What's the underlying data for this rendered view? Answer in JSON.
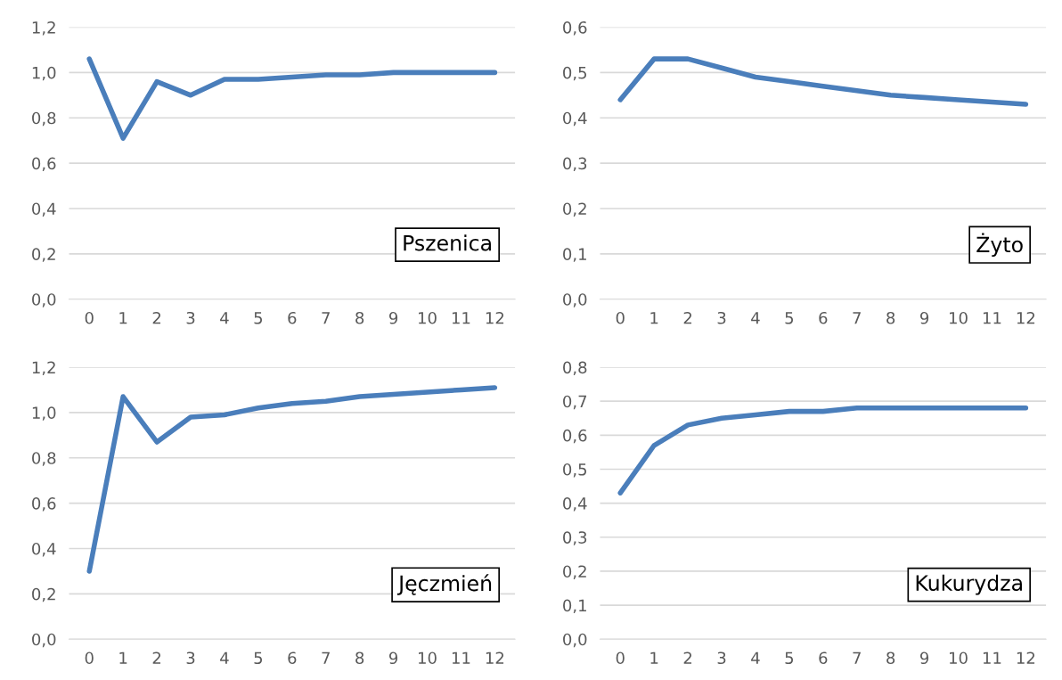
{
  "chart_data": [
    {
      "type": "line",
      "categories": [
        "0",
        "1",
        "2",
        "3",
        "4",
        "5",
        "6",
        "7",
        "8",
        "9",
        "10",
        "11",
        "12"
      ],
      "series": [
        {
          "color": "#4a7ebb",
          "values": [
            1.06,
            0.71,
            0.96,
            0.9,
            0.97,
            0.97,
            0.98,
            0.99,
            0.99,
            1.0,
            1.0,
            1.0,
            1.0
          ]
        }
      ],
      "ylim": [
        0,
        1.2
      ],
      "yticks": [
        {
          "value": 0,
          "label": "0,0"
        },
        {
          "value": 0.2,
          "label": "0,2"
        },
        {
          "value": 0.4,
          "label": "0,4"
        },
        {
          "value": 0.6,
          "label": "0,6"
        },
        {
          "value": 0.8,
          "label": "0,8"
        },
        {
          "value": 1.0,
          "label": "1,0"
        },
        {
          "value": 1.2,
          "label": "1,2"
        }
      ],
      "grid": "y",
      "annotations": [
        "Pszenica"
      ]
    },
    {
      "type": "line",
      "categories": [
        "0",
        "1",
        "2",
        "3",
        "4",
        "5",
        "6",
        "7",
        "8",
        "9",
        "10",
        "11",
        "12"
      ],
      "series": [
        {
          "color": "#4a7ebb",
          "values": [
            0.44,
            0.53,
            0.53,
            0.51,
            0.49,
            0.48,
            0.47,
            0.46,
            0.45,
            0.445,
            0.44,
            0.435,
            0.43
          ]
        }
      ],
      "ylim": [
        0,
        0.6
      ],
      "yticks": [
        {
          "value": 0,
          "label": "0,0"
        },
        {
          "value": 0.1,
          "label": "0,1"
        },
        {
          "value": 0.2,
          "label": "0,2"
        },
        {
          "value": 0.3,
          "label": "0,3"
        },
        {
          "value": 0.4,
          "label": "0,4"
        },
        {
          "value": 0.5,
          "label": "0,5"
        },
        {
          "value": 0.6,
          "label": "0,6"
        }
      ],
      "grid": "y",
      "annotations": [
        "Żyto"
      ]
    },
    {
      "type": "line",
      "categories": [
        "0",
        "1",
        "2",
        "3",
        "4",
        "5",
        "6",
        "7",
        "8",
        "9",
        "10",
        "11",
        "12"
      ],
      "series": [
        {
          "color": "#4a7ebb",
          "values": [
            0.3,
            1.07,
            0.87,
            0.98,
            0.99,
            1.02,
            1.04,
            1.05,
            1.07,
            1.08,
            1.09,
            1.1,
            1.11
          ]
        }
      ],
      "ylim": [
        0,
        1.2
      ],
      "yticks": [
        {
          "value": 0,
          "label": "0,0"
        },
        {
          "value": 0.2,
          "label": "0,2"
        },
        {
          "value": 0.4,
          "label": "0,4"
        },
        {
          "value": 0.6,
          "label": "0,6"
        },
        {
          "value": 0.8,
          "label": "0,8"
        },
        {
          "value": 1.0,
          "label": "1,0"
        },
        {
          "value": 1.2,
          "label": "1,2"
        }
      ],
      "grid": "y",
      "annotations": [
        "Jęczmień"
      ]
    },
    {
      "type": "line",
      "categories": [
        "0",
        "1",
        "2",
        "3",
        "4",
        "5",
        "6",
        "7",
        "8",
        "9",
        "10",
        "11",
        "12"
      ],
      "series": [
        {
          "color": "#4a7ebb",
          "values": [
            0.43,
            0.57,
            0.63,
            0.65,
            0.66,
            0.67,
            0.67,
            0.68,
            0.68,
            0.68,
            0.68,
            0.68,
            0.68
          ]
        }
      ],
      "ylim": [
        0,
        0.8
      ],
      "yticks": [
        {
          "value": 0,
          "label": "0,0"
        },
        {
          "value": 0.1,
          "label": "0,1"
        },
        {
          "value": 0.2,
          "label": "0,2"
        },
        {
          "value": 0.3,
          "label": "0,3"
        },
        {
          "value": 0.4,
          "label": "0,4"
        },
        {
          "value": 0.5,
          "label": "0,5"
        },
        {
          "value": 0.6,
          "label": "0,6"
        },
        {
          "value": 0.7,
          "label": "0,7"
        },
        {
          "value": 0.8,
          "label": "0,8"
        }
      ],
      "grid": "y",
      "annotations": [
        "Kukurydza"
      ]
    }
  ]
}
